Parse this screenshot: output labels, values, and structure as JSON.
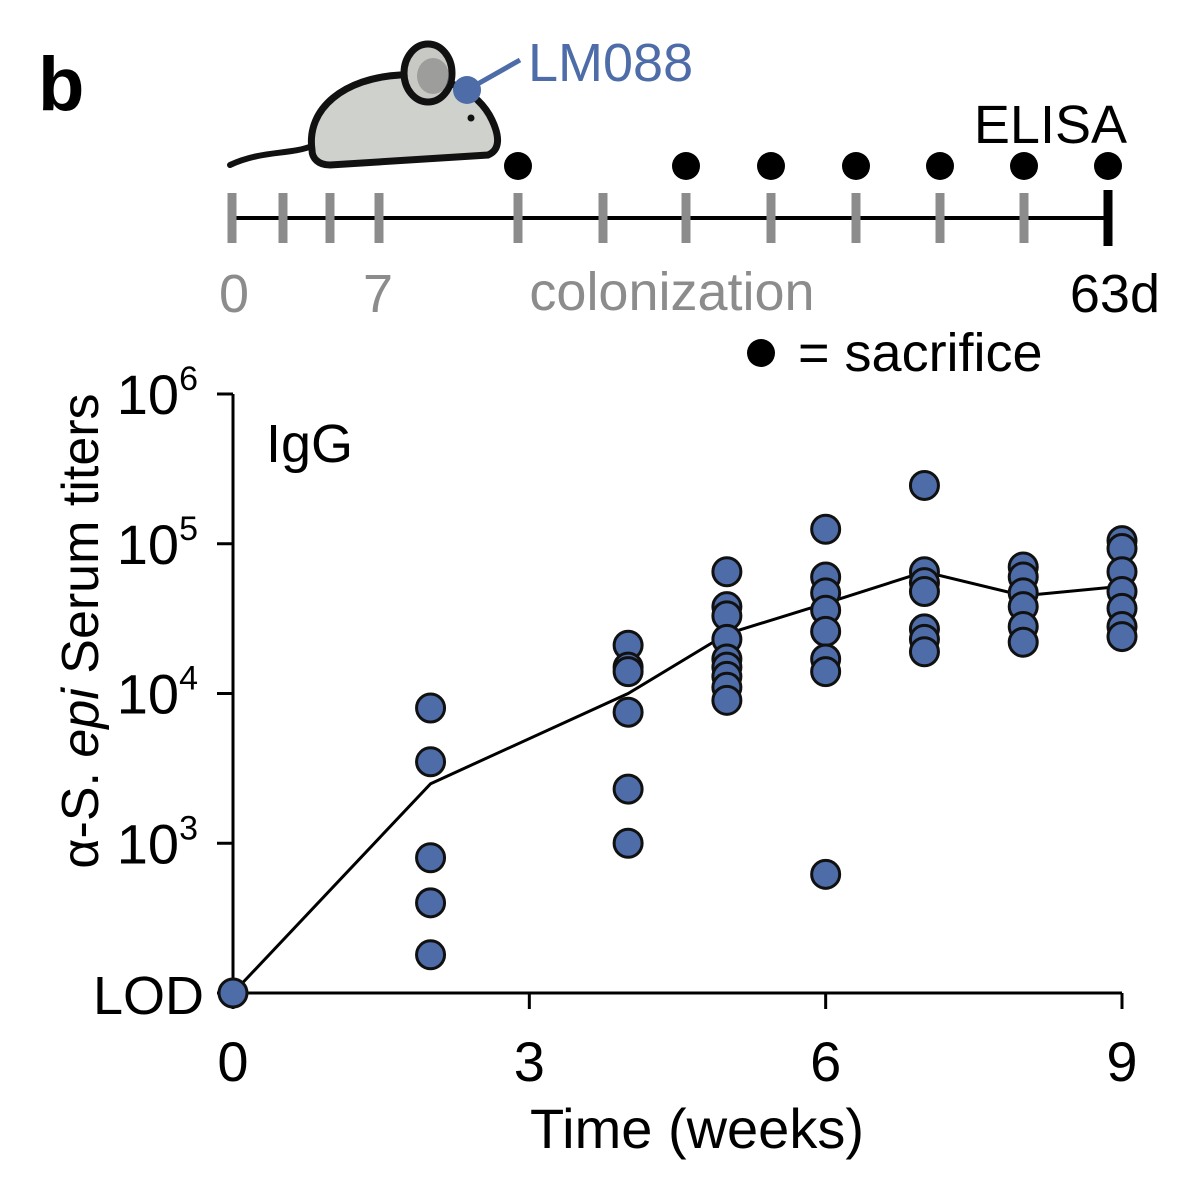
{
  "panel_label": "b",
  "schematic": {
    "strain_label": "LM088",
    "readout_label": "ELISA",
    "timeline_labels": {
      "start": "0",
      "day7": "7",
      "phase": "colonization",
      "end": "63d"
    },
    "legend_text": "= sacrifice"
  },
  "colors": {
    "marker_fill": "#4d6ca8",
    "marker_stroke": "#111111",
    "tick_gray": "#8c8c8c",
    "mouse_fill": "#cfd1cc"
  },
  "chart_data": {
    "type": "scatter",
    "title": "IgG",
    "xlabel": "Time (weeks)",
    "ylabel": {
      "prefix": "α-S.",
      "italic": "epi",
      "suffix": "Serum titers"
    },
    "y_scale": "log10",
    "xlim": [
      0,
      9
    ],
    "ylim_log10": [
      2,
      6
    ],
    "x_ticks": [
      {
        "value": 0,
        "label": "0"
      },
      {
        "value": 3,
        "label": "3"
      },
      {
        "value": 6,
        "label": "6"
      },
      {
        "value": 9,
        "label": "9"
      }
    ],
    "y_ticks": [
      {
        "value": 6,
        "base": "10",
        "exp": "6"
      },
      {
        "value": 5,
        "base": "10",
        "exp": "5"
      },
      {
        "value": 4,
        "base": "10",
        "exp": "4"
      },
      {
        "value": 3,
        "base": "10",
        "exp": "3"
      }
    ],
    "lod_label": "LOD",
    "lod_log10": 2,
    "points": [
      {
        "x": 0,
        "y": 100
      },
      {
        "x": 2,
        "y": 8000
      },
      {
        "x": 2,
        "y": 3500
      },
      {
        "x": 2,
        "y": 800
      },
      {
        "x": 2,
        "y": 400
      },
      {
        "x": 2,
        "y": 180
      },
      {
        "x": 4,
        "y": 21000
      },
      {
        "x": 4,
        "y": 15000
      },
      {
        "x": 4,
        "y": 14000
      },
      {
        "x": 4,
        "y": 7500
      },
      {
        "x": 4,
        "y": 2300
      },
      {
        "x": 4,
        "y": 1000
      },
      {
        "x": 5,
        "y": 65000
      },
      {
        "x": 5,
        "y": 38000
      },
      {
        "x": 5,
        "y": 33000
      },
      {
        "x": 5,
        "y": 23000
      },
      {
        "x": 5,
        "y": 17000
      },
      {
        "x": 5,
        "y": 15000
      },
      {
        "x": 5,
        "y": 13000
      },
      {
        "x": 5,
        "y": 11000
      },
      {
        "x": 5,
        "y": 9000
      },
      {
        "x": 6,
        "y": 125000
      },
      {
        "x": 6,
        "y": 60000
      },
      {
        "x": 6,
        "y": 47000
      },
      {
        "x": 6,
        "y": 36000
      },
      {
        "x": 6,
        "y": 26000
      },
      {
        "x": 6,
        "y": 17000
      },
      {
        "x": 6,
        "y": 14000
      },
      {
        "x": 6,
        "y": 620
      },
      {
        "x": 7,
        "y": 245000
      },
      {
        "x": 7,
        "y": 65000
      },
      {
        "x": 7,
        "y": 55000
      },
      {
        "x": 7,
        "y": 48000
      },
      {
        "x": 7,
        "y": 27000
      },
      {
        "x": 7,
        "y": 23000
      },
      {
        "x": 7,
        "y": 19000
      },
      {
        "x": 8,
        "y": 70000
      },
      {
        "x": 8,
        "y": 60000
      },
      {
        "x": 8,
        "y": 47000
      },
      {
        "x": 8,
        "y": 38000
      },
      {
        "x": 8,
        "y": 28000
      },
      {
        "x": 8,
        "y": 22000
      },
      {
        "x": 9,
        "y": 105000
      },
      {
        "x": 9,
        "y": 93000
      },
      {
        "x": 9,
        "y": 65000
      },
      {
        "x": 9,
        "y": 48000
      },
      {
        "x": 9,
        "y": 37000
      },
      {
        "x": 9,
        "y": 28000
      },
      {
        "x": 9,
        "y": 24000
      }
    ],
    "mean_line": [
      {
        "x": 0,
        "y": 100
      },
      {
        "x": 2,
        "y": 2500
      },
      {
        "x": 4,
        "y": 10000
      },
      {
        "x": 5,
        "y": 25000
      },
      {
        "x": 6,
        "y": 40000
      },
      {
        "x": 7,
        "y": 65000
      },
      {
        "x": 8,
        "y": 45000
      },
      {
        "x": 9,
        "y": 52000
      }
    ]
  }
}
